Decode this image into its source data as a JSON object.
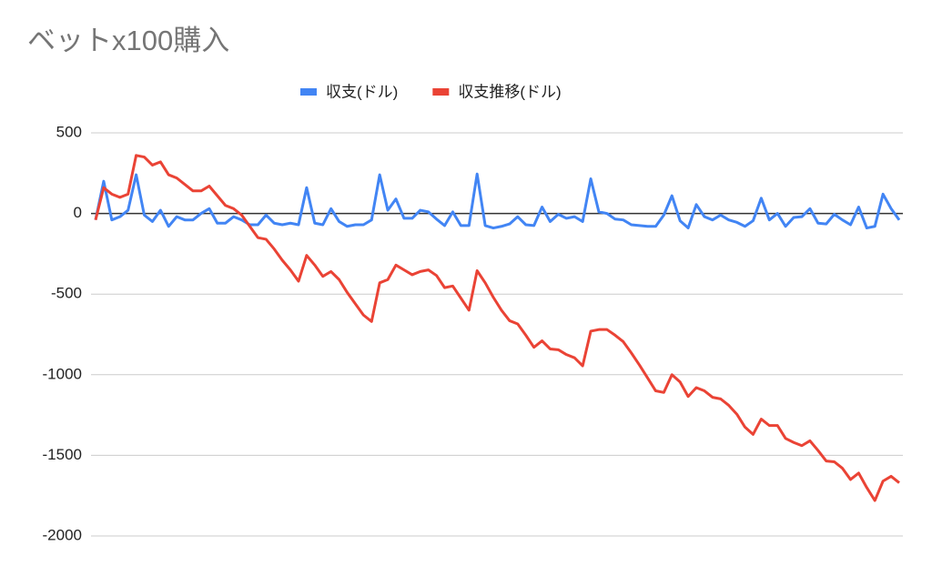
{
  "chart_data": {
    "type": "line",
    "title": "ベットx100購入",
    "ylim": [
      -2000,
      500
    ],
    "yticks": [
      500,
      0,
      -500,
      -1000,
      -1500,
      -2000
    ],
    "grid": true,
    "legend": "top",
    "series": [
      {
        "name": "収支(ドル)",
        "color": "#4285f4",
        "values": [
          -40,
          200,
          -40,
          -20,
          20,
          240,
          -10,
          -50,
          20,
          -80,
          -20,
          -40,
          -40,
          0,
          30,
          -60,
          -60,
          -20,
          -40,
          -70,
          -70,
          -10,
          -60,
          -70,
          -60,
          -70,
          160,
          -60,
          -70,
          30,
          -50,
          -80,
          -70,
          -70,
          -40,
          240,
          20,
          90,
          -30,
          -30,
          20,
          10,
          -35,
          -75,
          10,
          -75,
          -75,
          245,
          -75,
          -90,
          -80,
          -65,
          -20,
          -70,
          -75,
          40,
          -50,
          -5,
          -30,
          -20,
          -50,
          215,
          10,
          0,
          -35,
          -40,
          -70,
          -75,
          -80,
          -80,
          -10,
          110,
          -45,
          -90,
          55,
          -20,
          -40,
          -10,
          -40,
          -55,
          -80,
          -45,
          95,
          -40,
          0,
          -80,
          -25,
          -20,
          30,
          -60,
          -65,
          -5,
          -40,
          -70,
          40,
          -90,
          -80,
          120,
          30,
          -40
        ]
      },
      {
        "name": "収支推移(ドル)",
        "color": "#ea4335",
        "values": [
          -40,
          160,
          120,
          100,
          120,
          360,
          350,
          300,
          320,
          240,
          220,
          180,
          140,
          140,
          170,
          110,
          50,
          30,
          -10,
          -80,
          -150,
          -160,
          -220,
          -290,
          -350,
          -420,
          -260,
          -320,
          -390,
          -360,
          -410,
          -490,
          -560,
          -630,
          -670,
          -430,
          -410,
          -320,
          -350,
          -380,
          -360,
          -350,
          -385,
          -460,
          -450,
          -525,
          -600,
          -355,
          -430,
          -520,
          -600,
          -665,
          -685,
          -755,
          -830,
          -790,
          -840,
          -845,
          -875,
          -895,
          -945,
          -730,
          -720,
          -720,
          -755,
          -795,
          -865,
          -940,
          -1020,
          -1100,
          -1110,
          -1000,
          -1045,
          -1135,
          -1080,
          -1100,
          -1140,
          -1150,
          -1190,
          -1245,
          -1325,
          -1370,
          -1275,
          -1315,
          -1315,
          -1395,
          -1420,
          -1440,
          -1410,
          -1470,
          -1535,
          -1540,
          -1580,
          -1650,
          -1610,
          -1700,
          -1780,
          -1660,
          -1630,
          -1670
        ]
      }
    ]
  }
}
